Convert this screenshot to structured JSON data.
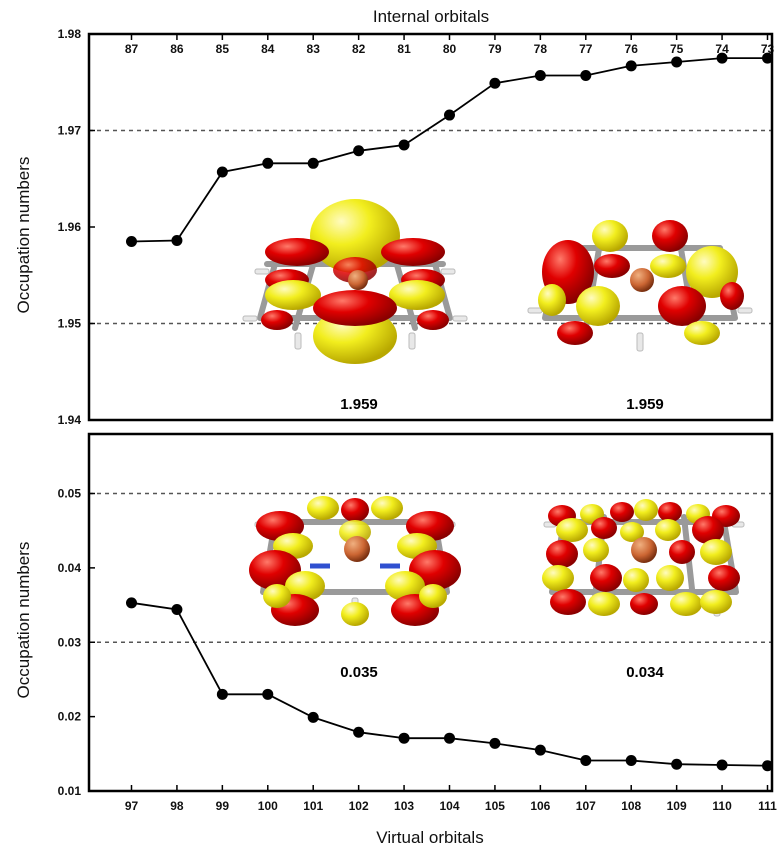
{
  "chart_data": [
    {
      "type": "line",
      "xlabel": "Internal orbitals",
      "ylabel": "Occupation numbers",
      "x": [
        87,
        86,
        85,
        84,
        83,
        82,
        81,
        80,
        79,
        78,
        77,
        76,
        75,
        74,
        73
      ],
      "tick_labels": [
        "87",
        "86",
        "85",
        "84",
        "83",
        "82",
        "81",
        "80",
        "79",
        "78",
        "77",
        "76",
        "75",
        "74",
        "73"
      ],
      "values": [
        1.9585,
        1.9586,
        1.9657,
        1.9666,
        1.9666,
        1.9679,
        1.9685,
        1.9716,
        1.9749,
        1.9757,
        1.9757,
        1.9767,
        1.9771,
        1.9775,
        1.9775
      ],
      "ylim": [
        1.94,
        1.98
      ],
      "yticks": [
        "1.94",
        "1.95",
        "1.96",
        "1.97",
        "1.98"
      ],
      "reference_lines": [
        1.95,
        1.97
      ],
      "annotations": [
        "1.959",
        "1.959"
      ],
      "x_axis_position": "top"
    },
    {
      "type": "line",
      "xlabel": "Virtual orbitals",
      "ylabel": "Occupation numbers",
      "x": [
        97,
        98,
        99,
        100,
        101,
        102,
        103,
        104,
        105,
        106,
        107,
        108,
        109,
        110,
        111
      ],
      "tick_labels": [
        "97",
        "98",
        "99",
        "100",
        "101",
        "102",
        "103",
        "104",
        "105",
        "106",
        "107",
        "108",
        "109",
        "110",
        "111"
      ],
      "values": [
        0.0353,
        0.0344,
        0.023,
        0.023,
        0.0199,
        0.0179,
        0.0171,
        0.0171,
        0.0164,
        0.0155,
        0.0141,
        0.0141,
        0.0136,
        0.0135,
        0.0134
      ],
      "ylim": [
        0.01,
        0.058
      ],
      "yticks": [
        "0.01",
        "0.02",
        "0.03",
        "0.04",
        "0.05"
      ],
      "reference_lines": [
        0.03,
        0.05
      ],
      "annotations": [
        "0.035",
        "0.034"
      ],
      "x_axis_position": "bottom"
    }
  ],
  "colors": {
    "lobe_red": "#e00000",
    "lobe_yellow": "#f2ee1e",
    "metal_center": "#cc6633",
    "framework": "#9a9a9a"
  }
}
